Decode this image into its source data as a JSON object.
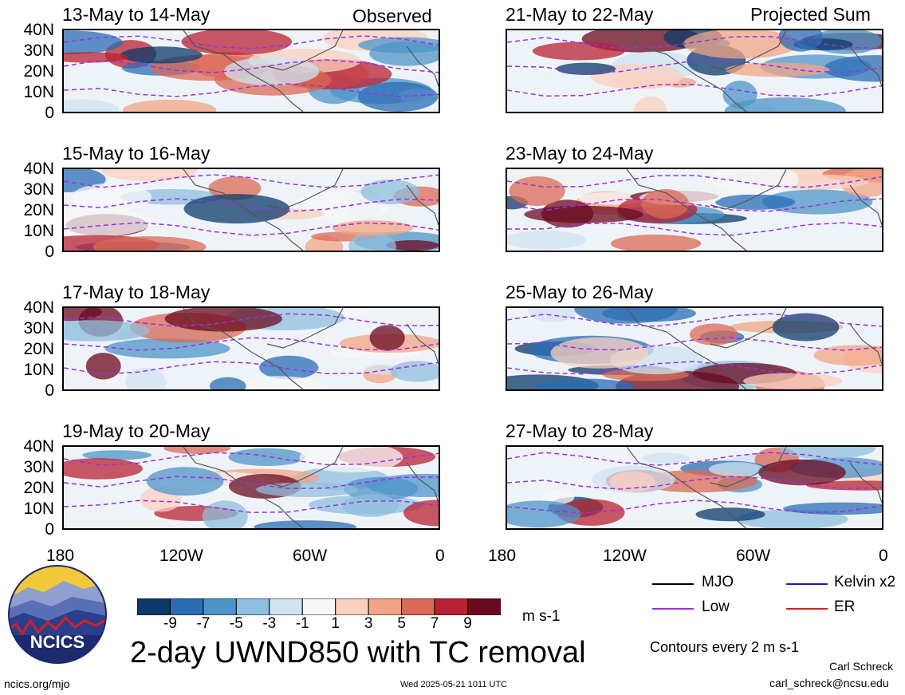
{
  "header": {
    "left_label": "Observed",
    "right_label": "Projected Sum"
  },
  "panels_left": [
    {
      "title": "13-May to 14-May"
    },
    {
      "title": "15-May to 16-May"
    },
    {
      "title": "17-May to 18-May"
    },
    {
      "title": "19-May to 20-May"
    }
  ],
  "panels_right": [
    {
      "title": "21-May to 22-May"
    },
    {
      "title": "23-May to 24-May"
    },
    {
      "title": "25-May to 26-May"
    },
    {
      "title": "27-May to 28-May"
    }
  ],
  "lat_ticks": [
    "40N",
    "30N",
    "20N",
    "10N",
    "0"
  ],
  "lon_ticks": [
    "180",
    "120W",
    "60W",
    "0"
  ],
  "colorbar": {
    "colors": [
      "#0b3a6b",
      "#2a6db4",
      "#4f94c9",
      "#8fbfde",
      "#cfe3f1",
      "#f7f7f7",
      "#f9d0c0",
      "#f1a486",
      "#db6a55",
      "#b82232",
      "#6b0a1f"
    ],
    "labels": [
      "-9",
      "-7",
      "-5",
      "-3",
      "-1",
      "1",
      "3",
      "5",
      "7",
      "9"
    ],
    "unit": "m s-1"
  },
  "legend": {
    "mjo": {
      "label": "MJO",
      "color": "#000000"
    },
    "kelvin": {
      "label": "Kelvin x2",
      "color": "#1a1ab8"
    },
    "low": {
      "label": "Low",
      "color": "#9b30e0"
    },
    "er": {
      "label": "ER",
      "color": "#d42020"
    },
    "contours": "Contours every 2 m s-1"
  },
  "logo": {
    "text": "NCICS"
  },
  "main_title": "2-day UWND850 with TC removal",
  "footer": {
    "left": "ncics.org/mjo",
    "center": "Wed 2025-05-21 1011 UTC",
    "author": "Carl Schreck",
    "email": "carl_schreck@ncsu.edu"
  }
}
